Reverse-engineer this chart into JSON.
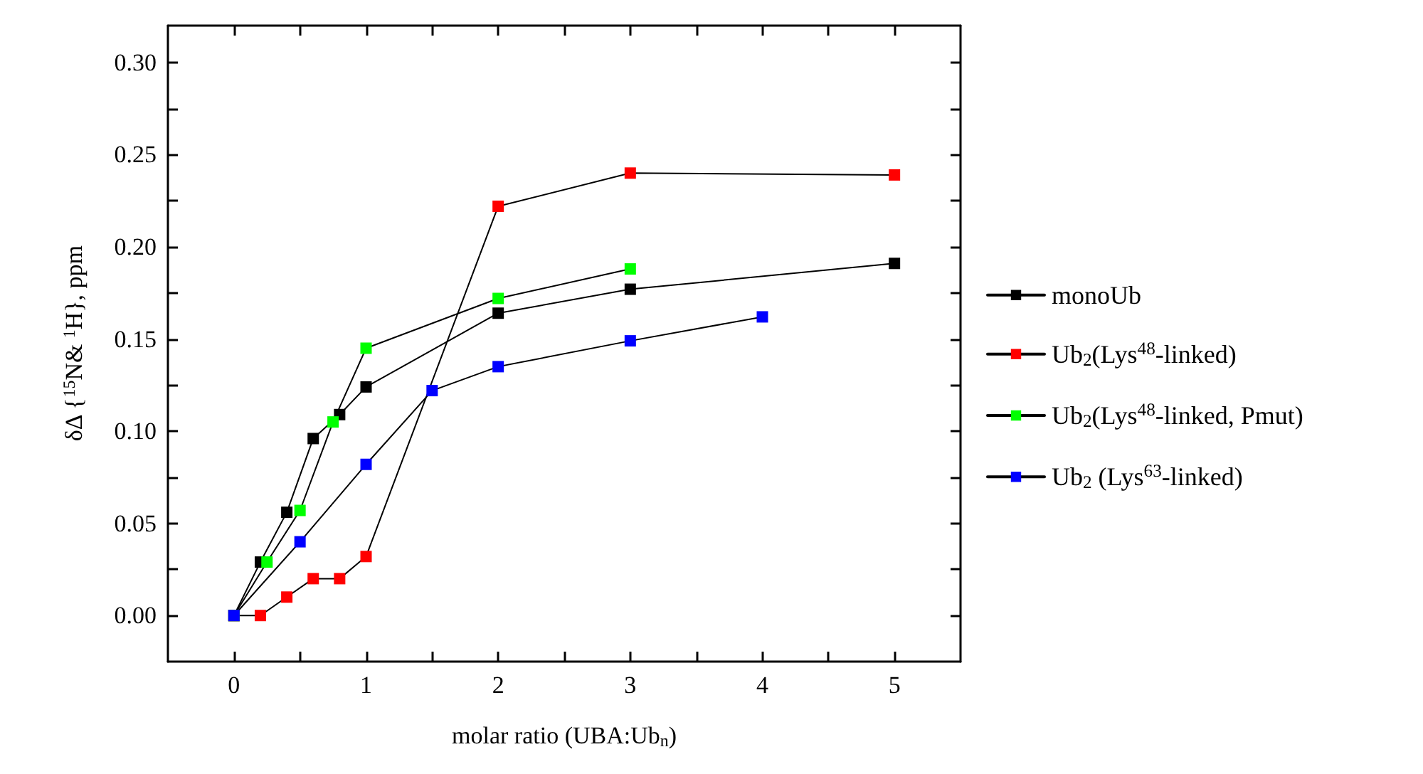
{
  "chart_data": {
    "type": "line",
    "xlabel": "molar ratio (UBA:Ub$_{n}$)",
    "ylabel": "δΔ {$^{15}$N& $^{1}$H}, ppm",
    "xlim": [
      -0.5,
      5.5
    ],
    "xticks": [
      0,
      {
        "value": 0.5,
        "label": null
      },
      1,
      {
        "value": 1.5,
        "label": null
      },
      2,
      {
        "value": 2.5,
        "label": null
      },
      3,
      {
        "value": 3.5,
        "label": null
      },
      4,
      {
        "value": 4.5,
        "label": null
      },
      5
    ],
    "ylim": [
      -0.025,
      0.32
    ],
    "yticks": [
      "0.00",
      {
        "value": 0.025,
        "label": null
      },
      {
        "value": 0.05,
        "label": "0.05"
      },
      {
        "value": 0.075,
        "label": null
      },
      {
        "value": 0.1,
        "label": "0.10"
      },
      {
        "value": 0.125,
        "label": null
      },
      {
        "value": 0.15,
        "label": "0.15"
      },
      {
        "value": 0.175,
        "label": null
      },
      {
        "value": 0.2,
        "label": "0.20"
      },
      {
        "value": 0.225,
        "label": null
      },
      {
        "value": 0.25,
        "label": "0.25"
      },
      {
        "value": 0.275,
        "label": null
      },
      {
        "value": 0.3,
        "label": "0.30"
      }
    ],
    "grid": false,
    "legend": "right",
    "marker": "square",
    "line_style": "solid",
    "series": [
      {
        "name": "monoUb",
        "color": "#000000",
        "x": [
          0,
          0.2,
          0.4,
          0.6,
          0.8,
          1,
          2,
          3,
          5
        ],
        "values": [
          0,
          0.029,
          0.056,
          0.096,
          0.109,
          0.124,
          0.164,
          0.177,
          0.191
        ]
      },
      {
        "name": "Ub$_{2}$(Lys$^{48}$-linked)",
        "color": "#ff0000",
        "x": [
          0,
          0.2,
          0.4,
          0.6,
          0.8,
          1,
          2,
          3,
          5
        ],
        "values": [
          0,
          0,
          0.01,
          0.02,
          0.02,
          0.032,
          0.222,
          0.24,
          0.239
        ]
      },
      {
        "name": "Ub$_{2}$(Lys$^{48}$-linked, Pmut)",
        "color": "#00ff00",
        "x": [
          0,
          0.25,
          0.5,
          0.75,
          1,
          2,
          3
        ],
        "values": [
          0,
          0.029,
          0.057,
          0.105,
          0.145,
          0.172,
          0.188
        ]
      },
      {
        "name": "Ub$_{2}$ (Lys$^{63}$-linked)",
        "color": "#0000ff",
        "x": [
          0,
          0.5,
          1,
          1.5,
          2,
          3,
          4
        ],
        "values": [
          0,
          0.04,
          0.082,
          0.122,
          0.135,
          0.149,
          0.162
        ]
      }
    ]
  }
}
